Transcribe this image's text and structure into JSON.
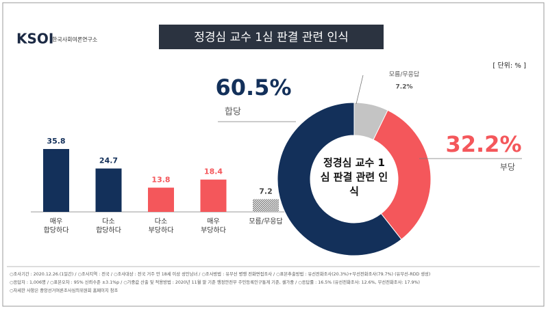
{
  "header": {
    "logo": "KSOI",
    "org": "한국사회여론연구소",
    "title": "정경심 교수 1심 판결 관련 인식",
    "unit": "[ 단위: % ]"
  },
  "chart_data": [
    {
      "type": "bar",
      "categories": [
        "매우 합당하다",
        "다소 합당하다",
        "다소 부당하다",
        "매우 부당하다",
        "모름/무응답"
      ],
      "values": [
        35.8,
        24.7,
        13.8,
        18.4,
        7.2
      ],
      "colors": [
        "#13305a",
        "#13305a",
        "#f4575b",
        "#f4575b",
        "#8c8c8c"
      ],
      "patterns": [
        null,
        null,
        null,
        null,
        "hatch"
      ]
    },
    {
      "type": "pie",
      "center_label": "정경심 교수 1심 판결 관련 인식",
      "series": [
        {
          "name": "합당",
          "color": "#13305a",
          "values": [
            60.5
          ],
          "value_labels": [
            "60.5%"
          ]
        },
        {
          "name": "부당",
          "color": "#f4575b",
          "values": [
            32.2
          ],
          "value_labels": [
            "32.2%"
          ]
        },
        {
          "name": "모름/무응답",
          "color": "#c4c4c4",
          "values": [
            7.2
          ],
          "value_labels": [
            "7.2%"
          ]
        }
      ]
    }
  ],
  "footnotes": [
    "○조사기간 : 2020.12.26.(1일간)  / ○조사지역 : 전국 / ○조사대상 : 전국 거주 만 18세 이상 성인남녀 / ○조사방법 : 유무선 병행 전화면접조사 / ○표본추출방법 : 유선전화조사(20.3%)+무선전화조사(79.7%) (유무선-RDD 생성)",
    "○응답자 : 1,006명 / ○표본오차 : 95% 신뢰수준 ±3.1%p / ○가중값 산출 및 적용방법 : 2020년 11월 말 기준 행정안전부 주민등록인구통계 기준, 셀가중 / ○응답률 : 16.5% (유선전화조사: 12.6%, 무선전화조사: 17.9%)",
    "○자세한 사항은 중앙선거여론조사심의위원회 홈페이지 참조"
  ]
}
